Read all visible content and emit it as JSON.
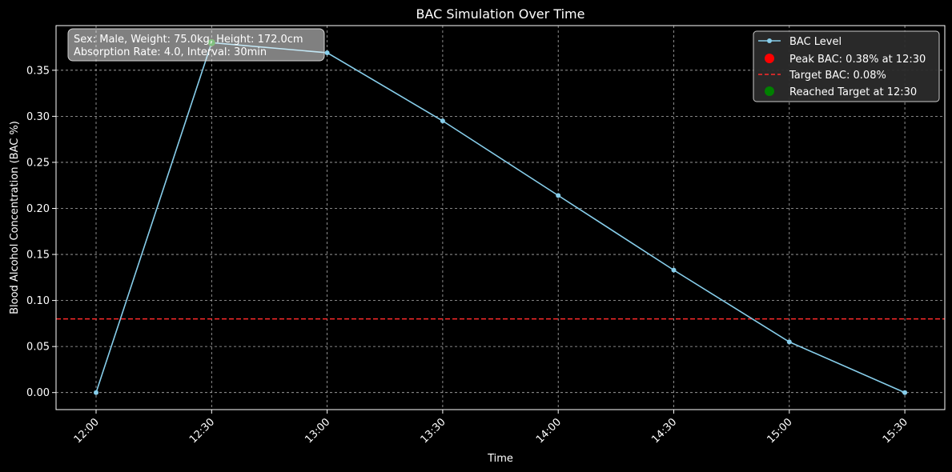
{
  "chart_data": {
    "type": "line",
    "title": "BAC Simulation Over Time",
    "xlabel": "Time",
    "ylabel": "Blood Alcohol Concentration (BAC %)",
    "x": [
      "12:00",
      "12:30",
      "13:00",
      "13:30",
      "14:00",
      "14:30",
      "15:00",
      "15:30"
    ],
    "series": [
      {
        "name": "BAC Level",
        "values": [
          0.0,
          0.38,
          0.369,
          0.295,
          0.214,
          0.133,
          0.055,
          0.0
        ],
        "color": "#87ceeb"
      }
    ],
    "yticks": [
      0.0,
      0.05,
      0.1,
      0.15,
      0.2,
      0.25,
      0.3,
      0.35
    ],
    "ytick_labels": [
      "0.00",
      "0.05",
      "0.10",
      "0.15",
      "0.20",
      "0.25",
      "0.30",
      "0.35"
    ],
    "ylim": [
      -0.0185,
      0.3985
    ],
    "grid": true,
    "legend_position": "top-right",
    "peak": {
      "label": "Peak BAC: 0.38% at 12:30",
      "x": "12:30",
      "y": 0.38,
      "color": "#ff0000"
    },
    "target_line": {
      "label": "Target BAC: 0.08%",
      "y": 0.08,
      "color": "#ff2a2a"
    },
    "reached_target": {
      "label": "Reached Target at 12:30",
      "x": "12:30",
      "y": 0.38,
      "color": "#008000"
    },
    "info_box": {
      "line1": "Sex: Male, Weight: 75.0kg, Height: 172.0cm",
      "line2": "Absorption Rate: 4.0, Interval: 30min"
    }
  }
}
